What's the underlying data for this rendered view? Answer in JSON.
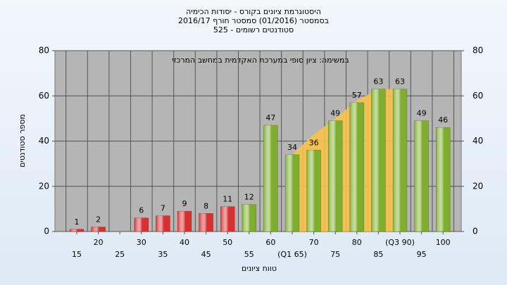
{
  "chart_data": {
    "type": "bar",
    "title": [
      "היסטוגרמת ציונים בקורס - יסודות הכימיה",
      "בסמסטר (01/2016) סמסטר חורף 2016/17",
      "סטודנטים רשומים - 525"
    ],
    "annotation": "במשימה: ציון סופי במערכת האקדמית במחשב המרכזי",
    "x_label": "טווח ציונים",
    "y_label": "מספר סטודנטים",
    "categories": [
      "15",
      "20",
      "25",
      "30",
      "35",
      "40",
      "45",
      "50",
      "55",
      "60",
      "(Q1 65)",
      "70",
      "75",
      "80",
      "85",
      "(Q3 90)",
      "95",
      "100"
    ],
    "values": [
      1,
      2,
      null,
      6,
      7,
      9,
      8,
      11,
      12,
      47,
      34,
      36,
      49,
      57,
      63,
      63,
      49,
      46
    ],
    "colors": [
      "#d63031",
      "#d63031",
      null,
      "#d63031",
      "#d63031",
      "#d63031",
      "#d63031",
      "#d63031",
      "#7fae2e",
      "#7fae2e",
      "#7fae2e",
      "#7fae2e",
      "#7fae2e",
      "#7fae2e",
      "#7fae2e",
      "#7fae2e",
      "#7fae2e",
      "#7fae2e"
    ],
    "area": {
      "color": "#f7c24a",
      "values": [
        null,
        null,
        null,
        null,
        null,
        null,
        null,
        null,
        null,
        null,
        34,
        43,
        50,
        58,
        63,
        63,
        null,
        null
      ]
    },
    "ylim": [
      0,
      80
    ],
    "yticks": [
      0,
      20,
      40,
      60,
      80
    ],
    "y2lim": [
      0,
      80
    ],
    "y2ticks": [
      0,
      20,
      40,
      60,
      80
    ],
    "grid": true
  }
}
